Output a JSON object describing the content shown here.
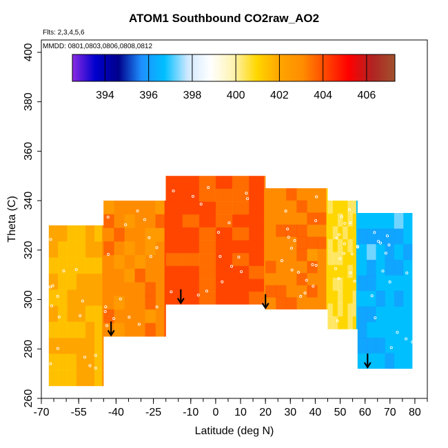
{
  "chart_data": {
    "type": "heatmap",
    "title": "ATOM1 Southbound CO2raw_AO2",
    "annotations": [
      "Flts: 2,3,4,5,6",
      "MMDD: 0801,0803,0806,0808,0812"
    ],
    "xlabel": "Latitude (deg N)",
    "ylabel": "Theta (C)",
    "xlim": [
      -70,
      85
    ],
    "ylim": [
      260,
      405
    ],
    "xticks": [
      -70,
      -55,
      -40,
      -25,
      -10,
      0,
      10,
      20,
      30,
      40,
      50,
      60,
      70,
      80
    ],
    "yticks": [
      260,
      280,
      300,
      320,
      340,
      360,
      380,
      400
    ],
    "colorbar": {
      "range": [
        392.5,
        407.3
      ],
      "ticks": [
        394,
        396,
        398,
        400,
        402,
        404,
        406
      ],
      "colors": [
        "#8a2be2",
        "#0000cd",
        "#00008b",
        "#1e90ff",
        "#00bfff",
        "#cfe8ff",
        "#ffffff",
        "#fff3b0",
        "#ffd700",
        "#ffa500",
        "#ff8c00",
        "#ff4500",
        "#ff0000",
        "#b22222",
        "#a0522d"
      ]
    },
    "field_regions": [
      {
        "lat_range": [
          -67,
          -45
        ],
        "theta_range": [
          265,
          330
        ],
        "co2": 401.5
      },
      {
        "lat_range": [
          -45,
          -20
        ],
        "theta_range": [
          285,
          340
        ],
        "co2": 403.0
      },
      {
        "lat_range": [
          -20,
          20
        ],
        "theta_range": [
          298,
          350
        ],
        "co2": 403.8
      },
      {
        "lat_range": [
          20,
          45
        ],
        "theta_range": [
          296,
          345
        ],
        "co2": 403.3
      },
      {
        "lat_range": [
          45,
          57
        ],
        "theta_range": [
          288,
          340
        ],
        "co2": 400.5
      },
      {
        "lat_range": [
          57,
          79
        ],
        "theta_range": [
          272,
          335
        ],
        "co2": 396.5
      }
    ],
    "arrows_lat": [
      -42,
      -14,
      20,
      61
    ],
    "grid": false
  }
}
